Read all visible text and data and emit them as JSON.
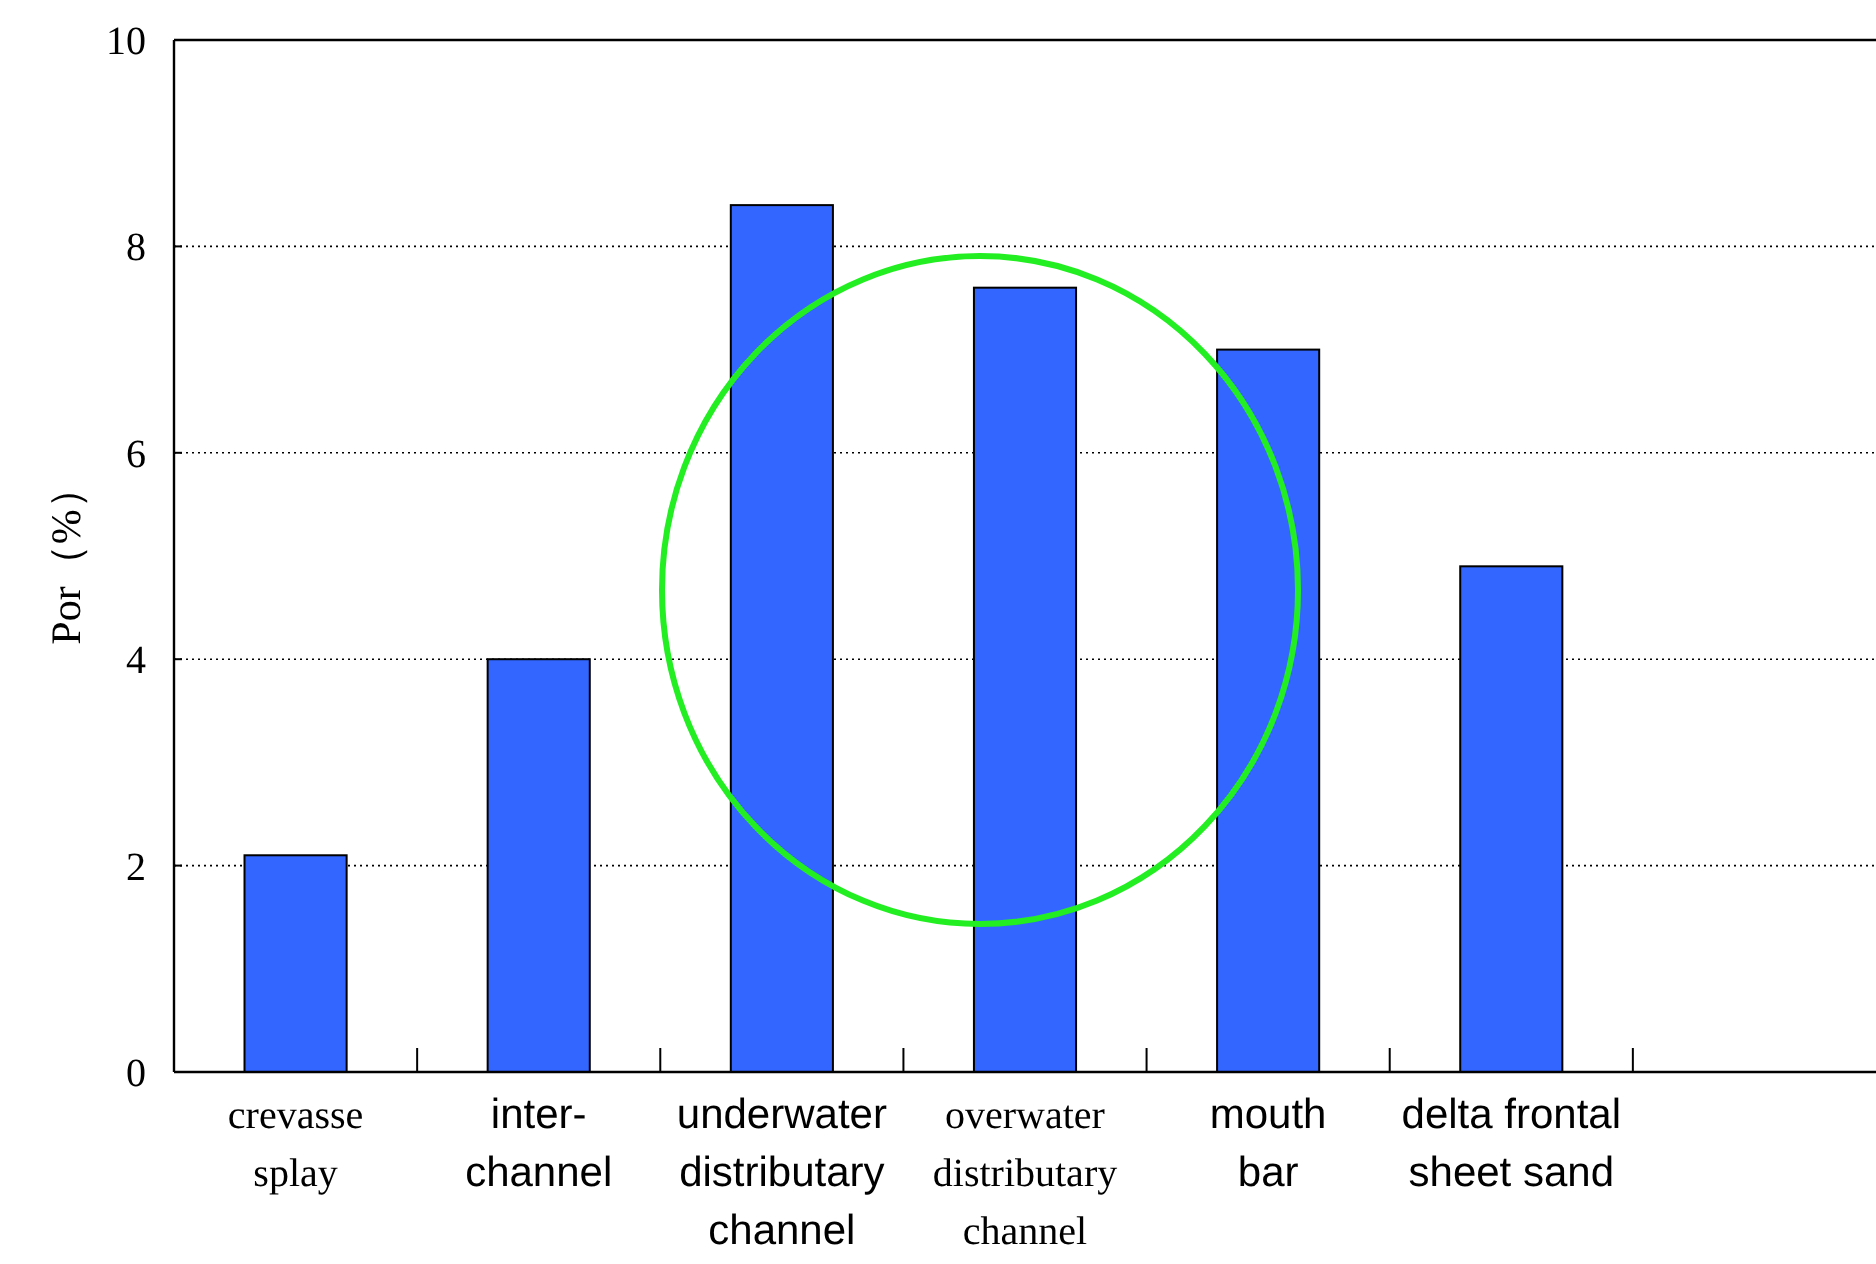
{
  "chart_data": {
    "type": "bar",
    "ylabel": "Por（%）",
    "categories": [
      "crevasse\nsplay",
      "inter-\nchannel",
      "underwater\ndistributary\nchannel",
      "overwater\ndistributary\nchannel",
      "mouth\nbar",
      "delta frontal\nsheet sand",
      null
    ],
    "series": [
      {
        "color": "#3366ff",
        "values": [
          2.1,
          4.0,
          8.4,
          7.6,
          7.0,
          4.9,
          null
        ]
      }
    ],
    "ylim": [
      0,
      10
    ],
    "yticks": [
      0,
      2,
      4,
      6,
      8,
      10
    ],
    "grid": "y"
  }
}
